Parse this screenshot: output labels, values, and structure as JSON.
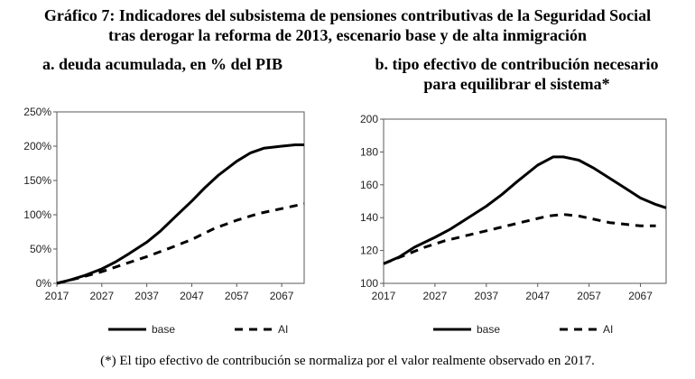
{
  "header": {
    "title_line1": "Gráfico 7: Indicadores del subsistema de pensiones contributivas de la Seguridad Social",
    "title_line2": "tras derogar la reforma de 2013, escenario base y de alta inmigración"
  },
  "footnote": "(*) El tipo efectivo de contribución se normaliza por el valor realmente observado en 2017.",
  "chart_data": [
    {
      "type": "line",
      "title": "a. deuda acumulada, en % del PIB",
      "title_lines": [
        "a. deuda acumulada, en % del PIB"
      ],
      "xlabel": "",
      "ylabel": "",
      "xlim": [
        2017,
        2072
      ],
      "ylim": [
        0,
        250
      ],
      "x_ticks": [
        2017,
        2027,
        2037,
        2047,
        2057,
        2067
      ],
      "y_ticks": [
        0,
        50,
        100,
        150,
        200,
        250
      ],
      "y_tick_labels": [
        "0%",
        "50%",
        "100%",
        "150%",
        "200%",
        "250%"
      ],
      "grid": false,
      "legend_position": "bottom",
      "series": [
        {
          "name": "base",
          "style": "solid",
          "x": [
            2017,
            2020,
            2023,
            2027,
            2030,
            2033,
            2037,
            2040,
            2043,
            2047,
            2050,
            2053,
            2057,
            2060,
            2063,
            2067,
            2070,
            2072
          ],
          "values": [
            0,
            5,
            11,
            21,
            31,
            43,
            60,
            76,
            95,
            120,
            140,
            158,
            178,
            190,
            197,
            200,
            202,
            202
          ]
        },
        {
          "name": "AI",
          "style": "dashed",
          "x": [
            2017,
            2022,
            2027,
            2032,
            2037,
            2042,
            2047,
            2052,
            2057,
            2062,
            2067,
            2072
          ],
          "values": [
            0,
            8,
            17,
            28,
            39,
            51,
            64,
            80,
            92,
            102,
            109,
            116
          ]
        }
      ],
      "colors": {
        "line": "#000000",
        "axis": "#595959"
      }
    },
    {
      "type": "line",
      "title": "b. tipo efectivo de contribución necesario para equilibrar el sistema*",
      "title_lines": [
        "b. tipo efectivo de contribución necesario",
        "para equilibrar el sistema*"
      ],
      "xlabel": "",
      "ylabel": "",
      "xlim": [
        2017,
        2072
      ],
      "ylim": [
        100,
        200
      ],
      "x_ticks": [
        2017,
        2027,
        2037,
        2047,
        2057,
        2067
      ],
      "y_ticks": [
        100,
        120,
        140,
        160,
        180,
        200
      ],
      "y_tick_labels": [
        "100",
        "120",
        "140",
        "160",
        "180",
        "200"
      ],
      "grid": false,
      "legend_position": "bottom",
      "series": [
        {
          "name": "base",
          "style": "solid",
          "x": [
            2017,
            2020,
            2023,
            2027,
            2030,
            2033,
            2037,
            2040,
            2043,
            2047,
            2050,
            2052,
            2055,
            2058,
            2061,
            2064,
            2067,
            2070,
            2072
          ],
          "values": [
            112,
            116,
            122,
            128,
            133,
            139,
            147,
            154,
            162,
            172,
            177,
            177,
            175,
            170,
            164,
            158,
            152,
            148,
            146
          ]
        },
        {
          "name": "AI",
          "style": "dashed",
          "x": [
            2017,
            2021,
            2025,
            2029,
            2033,
            2037,
            2041,
            2045,
            2049,
            2052,
            2055,
            2058,
            2061,
            2064,
            2067,
            2070
          ],
          "values": [
            112,
            117,
            122,
            126,
            129,
            132,
            135,
            138,
            141,
            142,
            141,
            139,
            137,
            136,
            135,
            135
          ]
        }
      ],
      "colors": {
        "line": "#000000",
        "axis": "#595959"
      }
    }
  ]
}
